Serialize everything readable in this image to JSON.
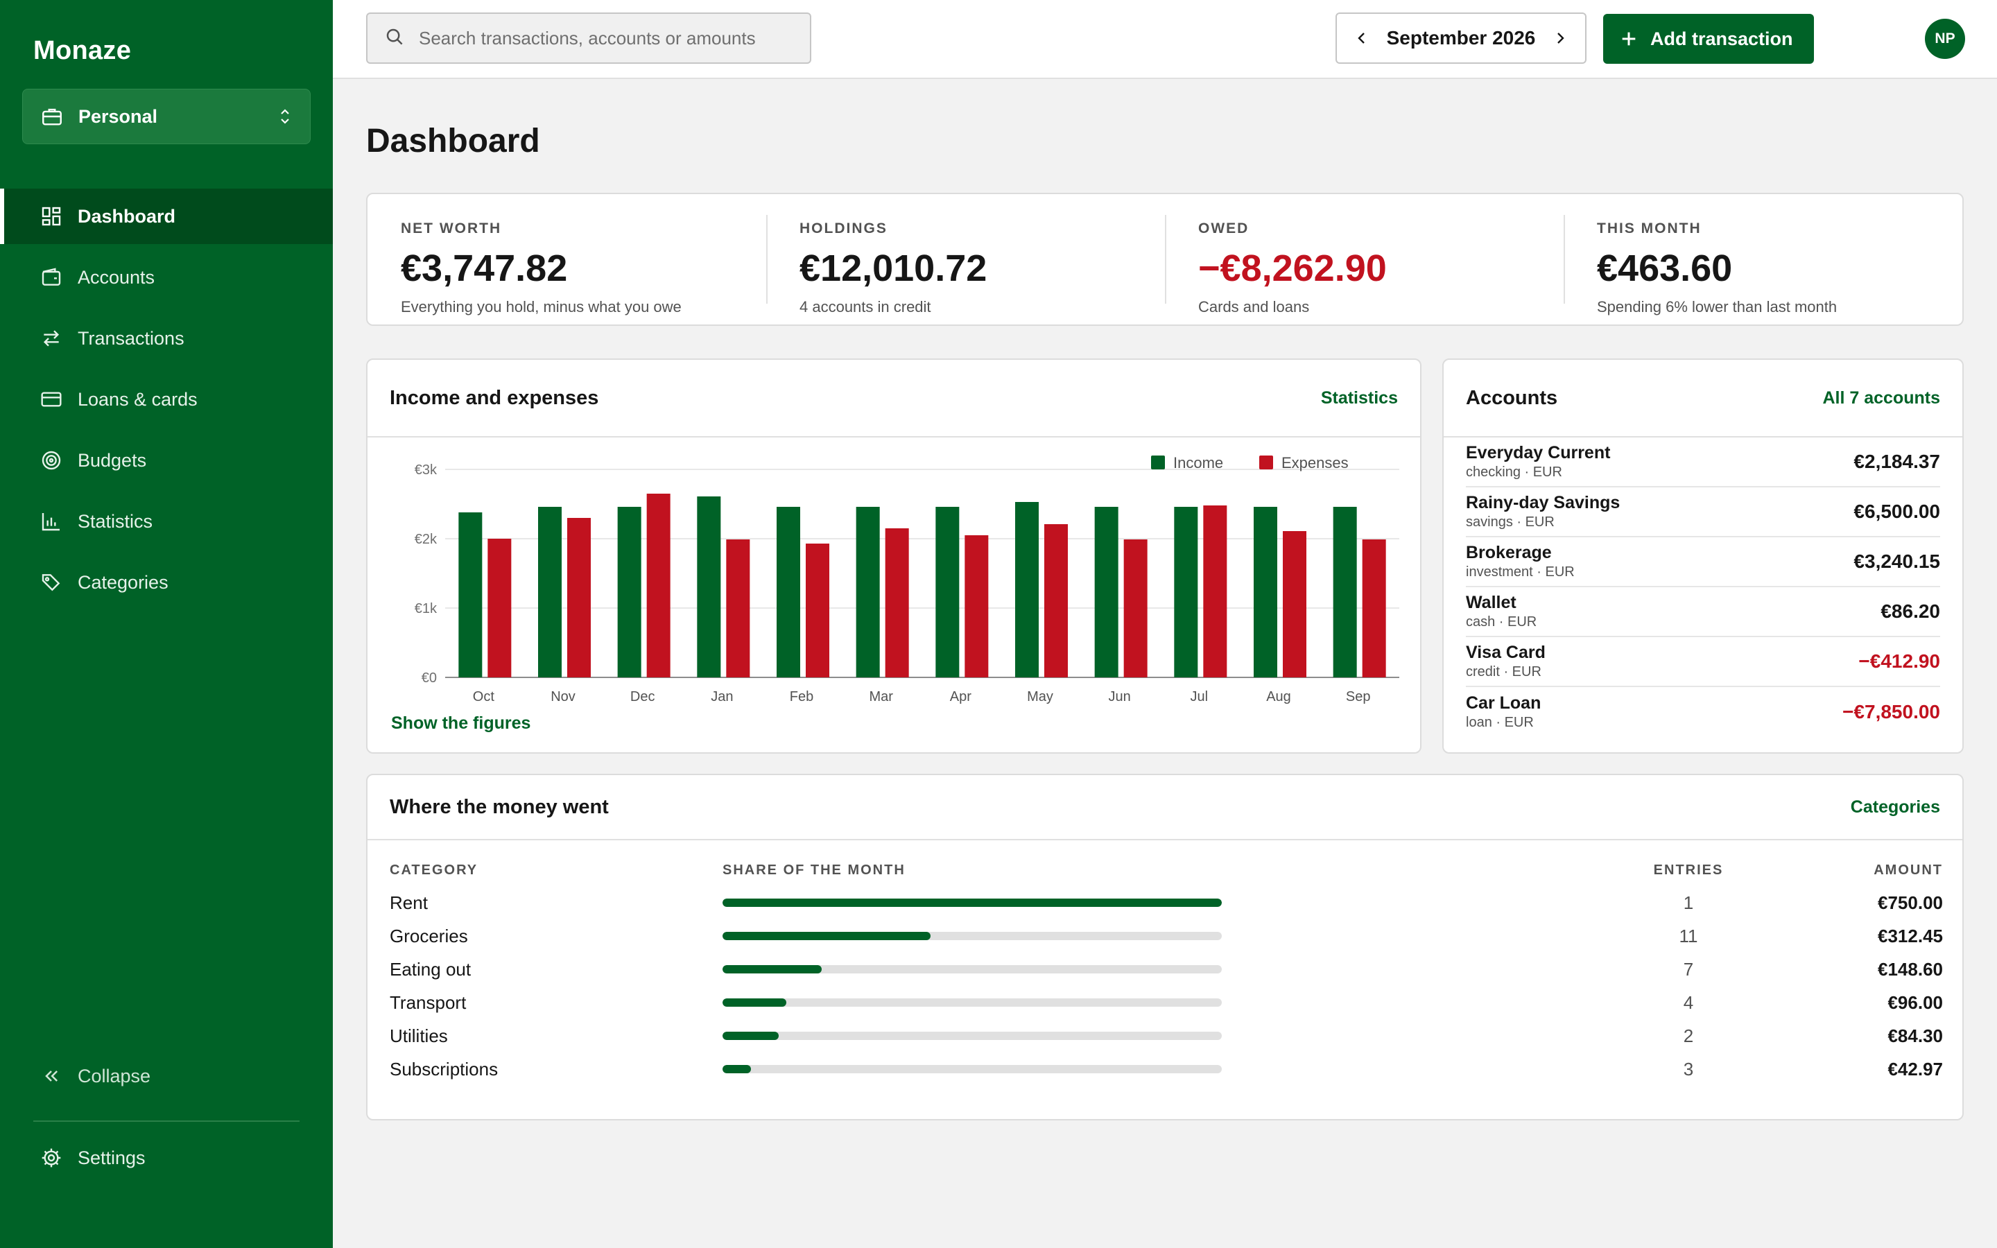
{
  "app": {
    "name": "Monaze"
  },
  "workspace": {
    "label": "Personal"
  },
  "nav": [
    {
      "label": "Dashboard",
      "icon": "dashboard-icon",
      "active": true
    },
    {
      "label": "Accounts",
      "icon": "wallet-icon"
    },
    {
      "label": "Transactions",
      "icon": "transfer-arrows-icon"
    },
    {
      "label": "Loans & cards",
      "icon": "credit-card-icon"
    },
    {
      "label": "Budgets",
      "icon": "target-icon"
    },
    {
      "label": "Statistics",
      "icon": "bar-chart-icon"
    },
    {
      "label": "Categories",
      "icon": "tags-icon"
    }
  ],
  "sidebar_footer": {
    "collapse_label": "Collapse",
    "settings_label": "Settings"
  },
  "topbar": {
    "search_placeholder": "Search transactions, accounts or amounts",
    "month_label": "September 2026",
    "add_label": "Add transaction",
    "avatar_initials": "NP"
  },
  "page": {
    "title": "Dashboard"
  },
  "kpis": [
    {
      "label": "NET WORTH",
      "value": "€3,747.82",
      "sub": "Everything you hold, minus what you owe",
      "negative": false
    },
    {
      "label": "HOLDINGS",
      "value": "€12,010.72",
      "sub": "4 accounts in credit",
      "negative": false
    },
    {
      "label": "OWED",
      "value": "−€8,262.90",
      "sub": "Cards and loans",
      "negative": true
    },
    {
      "label": "THIS MONTH",
      "value": "€463.60",
      "sub": "Spending 6% lower than last month",
      "negative": false
    }
  ],
  "income_card": {
    "title": "Income and expenses",
    "link": "Statistics",
    "show_figures": "Show the figures"
  },
  "chart_data": {
    "type": "bar",
    "categories": [
      "Oct",
      "Nov",
      "Dec",
      "Jan",
      "Feb",
      "Mar",
      "Apr",
      "May",
      "Jun",
      "Jul",
      "Aug",
      "Sep"
    ],
    "series": [
      {
        "name": "Income",
        "color": "#006227",
        "values": [
          2380,
          2460,
          2460,
          2610,
          2460,
          2460,
          2460,
          2530,
          2460,
          2460,
          2460,
          2460
        ]
      },
      {
        "name": "Expenses",
        "color": "#c1121f",
        "values": [
          2000,
          2300,
          2650,
          1990,
          1930,
          2150,
          2050,
          2210,
          1990,
          2480,
          2110,
          1990
        ]
      }
    ],
    "yticks": [
      "€0",
      "€1k",
      "€2k",
      "€3k"
    ],
    "ylim": [
      0,
      3000
    ],
    "grid": true,
    "legend": "top-right"
  },
  "accounts_card": {
    "title": "Accounts",
    "link": "All 7 accounts",
    "items": [
      {
        "name": "Everyday Current",
        "meta": "checking · EUR",
        "amount": "€2,184.37",
        "negative": false
      },
      {
        "name": "Rainy-day Savings",
        "meta": "savings · EUR",
        "amount": "€6,500.00",
        "negative": false
      },
      {
        "name": "Brokerage",
        "meta": "investment · EUR",
        "amount": "€3,240.15",
        "negative": false
      },
      {
        "name": "Wallet",
        "meta": "cash · EUR",
        "amount": "€86.20",
        "negative": false
      },
      {
        "name": "Visa Card",
        "meta": "credit · EUR",
        "amount": "−€412.90",
        "negative": true
      },
      {
        "name": "Car Loan",
        "meta": "loan · EUR",
        "amount": "−€7,850.00",
        "negative": true
      }
    ]
  },
  "spending": {
    "title": "Where the money went",
    "link": "Categories",
    "headers": {
      "category": "CATEGORY",
      "share": "SHARE OF THE MONTH",
      "entries": "ENTRIES",
      "amount": "AMOUNT"
    },
    "rows": [
      {
        "category": "Rent",
        "share": 1.0,
        "entries": "1",
        "amount": "€750.00"
      },
      {
        "category": "Groceries",
        "share": 0.4164,
        "entries": "11",
        "amount": "€312.45"
      },
      {
        "category": "Eating out",
        "share": 0.1981,
        "entries": "7",
        "amount": "€148.60"
      },
      {
        "category": "Transport",
        "share": 0.128,
        "entries": "4",
        "amount": "€96.00"
      },
      {
        "category": "Utilities",
        "share": 0.1124,
        "entries": "2",
        "amount": "€84.30"
      },
      {
        "category": "Subscriptions",
        "share": 0.0573,
        "entries": "3",
        "amount": "€42.97"
      }
    ]
  },
  "colors": {
    "brand": "#006227",
    "negative": "#c1121f"
  }
}
